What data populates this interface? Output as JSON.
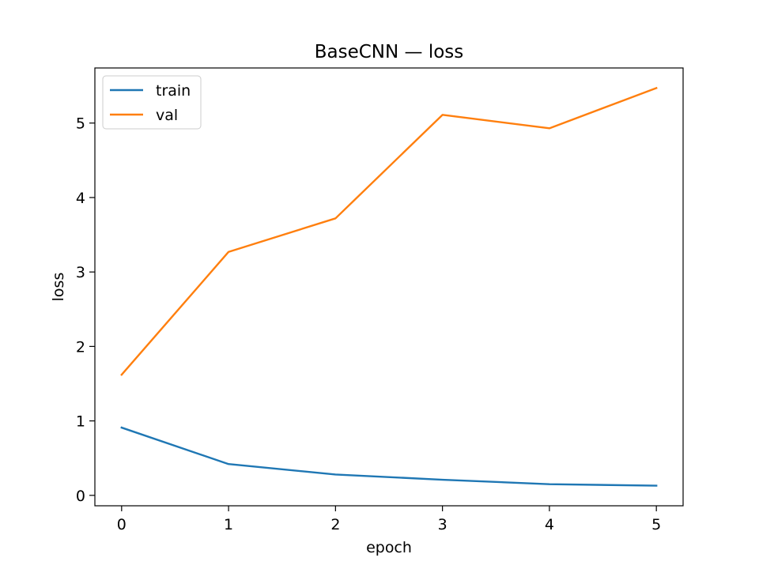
{
  "chart_data": {
    "type": "line",
    "title": "BaseCNN — loss",
    "xlabel": "epoch",
    "ylabel": "loss",
    "x": [
      0,
      1,
      2,
      3,
      4,
      5
    ],
    "xticks": [
      0,
      1,
      2,
      3,
      4,
      5
    ],
    "yticks": [
      0,
      1,
      2,
      3,
      4,
      5
    ],
    "xlim": [
      -0.25,
      5.25
    ],
    "ylim": [
      -0.14,
      5.74
    ],
    "grid": false,
    "legend_position": "upper-left",
    "series": [
      {
        "name": "train",
        "color": "#1f77b4",
        "values": [
          0.91,
          0.42,
          0.28,
          0.21,
          0.15,
          0.13
        ]
      },
      {
        "name": "val",
        "color": "#ff7f0e",
        "values": [
          1.62,
          3.27,
          3.72,
          5.11,
          4.93,
          5.47
        ]
      }
    ]
  }
}
